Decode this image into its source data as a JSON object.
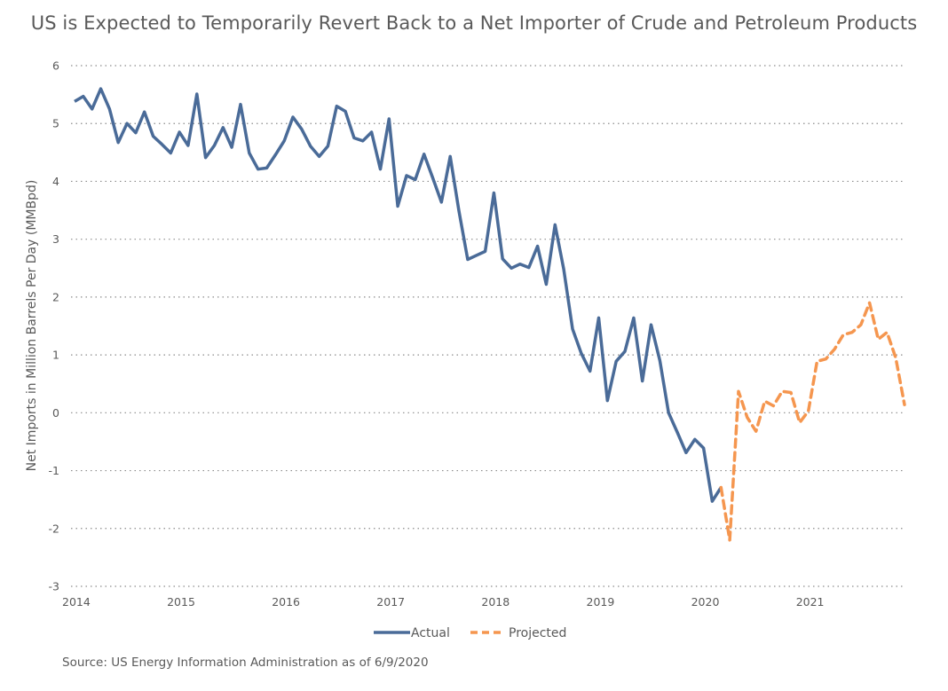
{
  "chart_data": {
    "type": "line",
    "title": "US is Expected to Temporarily Revert Back to a Net Importer of Crude and Petroleum Products",
    "xlabel": "",
    "ylabel": "Net Imports in Million Barrels Per Day (MMBpd)",
    "ylim": [
      -3,
      6
    ],
    "xlim": [
      2014,
      2021.92
    ],
    "grid": "horizontal-dotted",
    "y_ticks": [
      "6",
      "5",
      "4",
      "3",
      "2",
      "1",
      "0",
      "-1",
      "-2",
      "-3"
    ],
    "y_tick_values": [
      6,
      5,
      4,
      3,
      2,
      1,
      0,
      -1,
      -2,
      -3
    ],
    "x_ticks": [
      "2014",
      "2015",
      "2016",
      "2017",
      "2018",
      "2019",
      "2020",
      "2021"
    ],
    "x_tick_values": [
      2014,
      2015,
      2016,
      2017,
      2018,
      2019,
      2020,
      2021
    ],
    "legend_position": "bottom-center",
    "series": [
      {
        "name": "Actual",
        "color": "#4a6b98",
        "style": "solid",
        "start": 2014,
        "step_months": 1,
        "values": [
          5.38,
          5.47,
          5.25,
          5.6,
          5.25,
          4.67,
          5.0,
          4.84,
          5.2,
          4.78,
          4.64,
          4.49,
          4.85,
          4.62,
          5.51,
          4.41,
          4.62,
          4.93,
          4.59,
          5.33,
          4.49,
          4.21,
          4.23,
          4.46,
          4.7,
          5.11,
          4.9,
          4.61,
          4.43,
          4.61,
          5.3,
          5.21,
          4.75,
          4.7,
          4.85,
          4.21,
          5.08,
          3.57,
          4.1,
          4.03,
          4.47,
          4.06,
          3.64,
          4.43,
          3.49,
          2.65,
          2.72,
          2.79,
          3.8,
          2.66,
          2.5,
          2.57,
          2.51,
          2.88,
          2.22,
          3.25,
          2.48,
          1.45,
          1.03,
          0.72,
          1.64,
          0.21,
          0.89,
          1.06,
          1.64,
          0.55,
          1.52,
          0.9,
          0.0,
          -0.34,
          -0.69,
          -0.46,
          -0.61,
          -1.53,
          -1.29
        ]
      },
      {
        "name": "Projected",
        "color": "#f5964f",
        "style": "dashed",
        "start": 2020.1667,
        "step_months": 1,
        "values": [
          -1.29,
          -2.2,
          0.37,
          -0.08,
          -0.32,
          0.2,
          0.12,
          0.37,
          0.35,
          -0.17,
          0.03,
          0.89,
          0.93,
          1.1,
          1.35,
          1.39,
          1.52,
          1.9,
          1.27,
          1.39,
          0.95,
          0.14
        ]
      }
    ],
    "source": "Source: US Energy Information Administration as of 6/9/2020"
  }
}
